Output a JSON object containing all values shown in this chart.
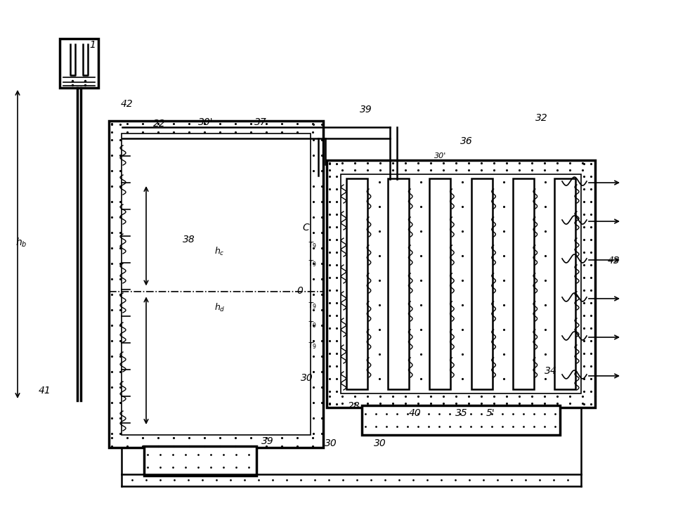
{
  "bg_color": "#ffffff",
  "line_color": "#000000",
  "fig_width": 9.92,
  "fig_height": 7.23
}
